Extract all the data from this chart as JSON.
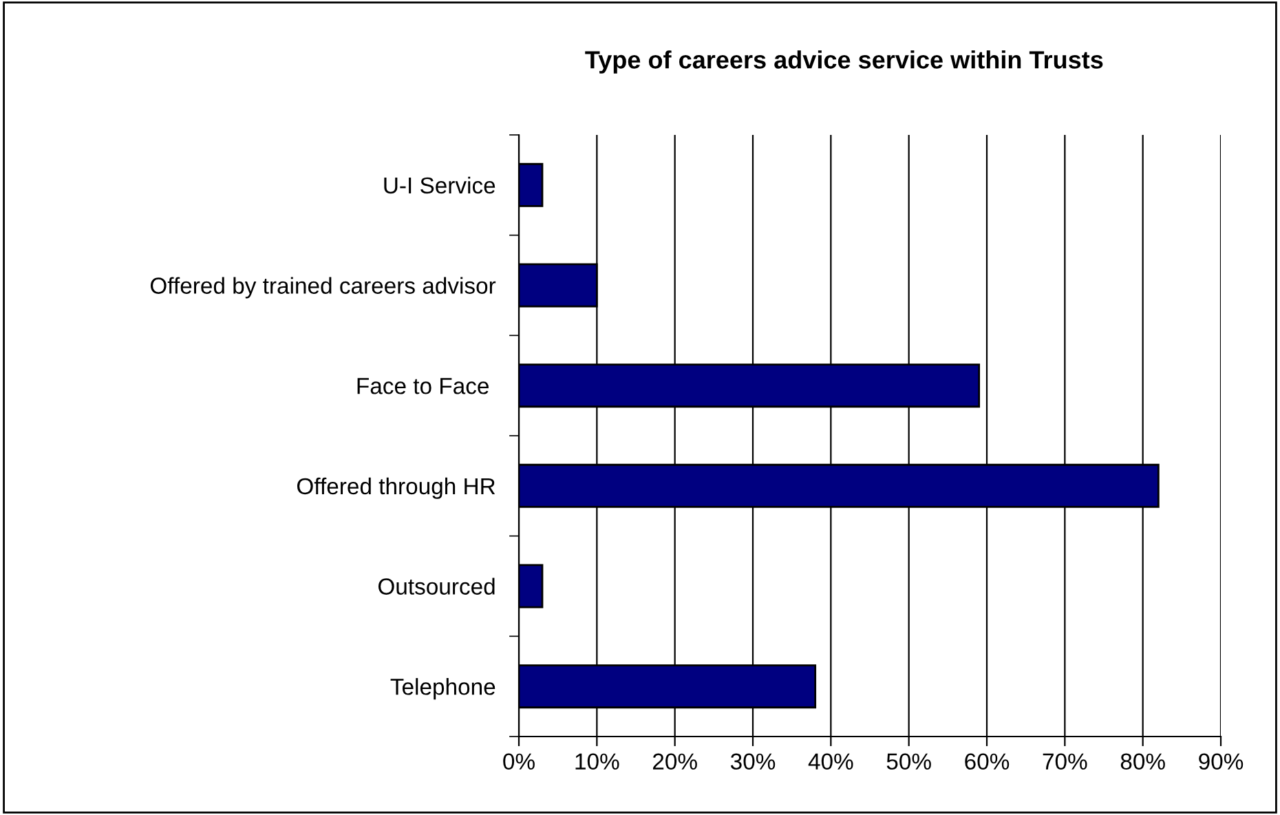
{
  "chart_data": {
    "type": "bar",
    "orientation": "horizontal",
    "title": "Type of careers advice service within Trusts",
    "categories": [
      "U-I Service",
      "Offered by trained careers advisor",
      "Face to Face ",
      "Offered through HR",
      "Outsourced",
      "Telephone"
    ],
    "values": [
      3,
      10,
      59,
      82,
      3,
      38
    ],
    "color": "#000080",
    "xlim": [
      0,
      90
    ],
    "xticks": [
      {
        "value": 0,
        "label": "0%"
      },
      {
        "value": 10,
        "label": "10%"
      },
      {
        "value": 20,
        "label": "20%"
      },
      {
        "value": 30,
        "label": "30%"
      },
      {
        "value": 40,
        "label": "40%"
      },
      {
        "value": 50,
        "label": "50%"
      },
      {
        "value": 60,
        "label": "60%"
      },
      {
        "value": 70,
        "label": "70%"
      },
      {
        "value": 80,
        "label": "80%"
      },
      {
        "value": 90,
        "label": "90%"
      }
    ],
    "grid": "x",
    "legend": false
  }
}
